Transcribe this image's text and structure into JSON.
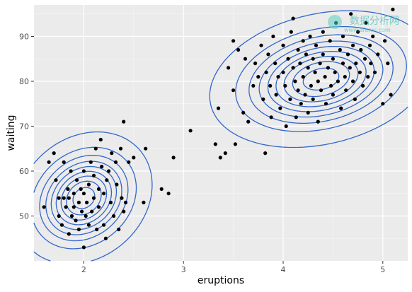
{
  "chart_data": {
    "type": "scatter",
    "xlabel": "eruptions",
    "ylabel": "waiting",
    "xlim": [
      1.5,
      5.25
    ],
    "ylim": [
      40,
      97
    ],
    "x_ticks": [
      2,
      3,
      4,
      5
    ],
    "y_ticks": [
      50,
      60,
      70,
      80,
      90
    ],
    "grid": true,
    "legend": "none",
    "background": "#ebebeb",
    "point_color": "#000000",
    "contour_color": "#3366cc",
    "density_contours": {
      "clusters": [
        {
          "center": [
            2.0,
            54.0
          ],
          "sd": [
            0.27,
            5.8
          ],
          "rho": 0.2
        },
        {
          "center": [
            4.38,
            80.5
          ],
          "sd": [
            0.44,
            6.0
          ],
          "rho": 0.25
        }
      ],
      "level_count": 9
    },
    "points": [
      [
        1.6,
        52
      ],
      [
        1.65,
        62
      ],
      [
        1.7,
        64
      ],
      [
        1.72,
        58
      ],
      [
        1.75,
        54
      ],
      [
        1.75,
        50
      ],
      [
        1.78,
        48
      ],
      [
        1.8,
        62
      ],
      [
        1.8,
        54
      ],
      [
        1.82,
        52
      ],
      [
        1.84,
        56
      ],
      [
        1.85,
        46
      ],
      [
        1.85,
        54
      ],
      [
        1.87,
        60
      ],
      [
        1.88,
        50
      ],
      [
        1.9,
        52
      ],
      [
        1.9,
        55
      ],
      [
        1.92,
        49
      ],
      [
        1.93,
        58
      ],
      [
        1.95,
        53
      ],
      [
        1.95,
        47
      ],
      [
        1.97,
        56
      ],
      [
        1.98,
        51
      ],
      [
        2.0,
        55
      ],
      [
        2.0,
        43
      ],
      [
        2.0,
        60
      ],
      [
        2.02,
        50
      ],
      [
        2.03,
        53
      ],
      [
        2.05,
        57
      ],
      [
        2.05,
        48
      ],
      [
        2.07,
        62
      ],
      [
        2.08,
        51
      ],
      [
        2.1,
        54
      ],
      [
        2.1,
        59
      ],
      [
        2.12,
        65
      ],
      [
        2.13,
        47
      ],
      [
        2.15,
        56
      ],
      [
        2.15,
        52
      ],
      [
        2.17,
        67
      ],
      [
        2.18,
        61
      ],
      [
        2.2,
        48
      ],
      [
        2.2,
        55
      ],
      [
        2.22,
        45
      ],
      [
        2.23,
        58
      ],
      [
        2.25,
        60
      ],
      [
        2.27,
        53
      ],
      [
        2.28,
        64
      ],
      [
        2.3,
        50
      ],
      [
        2.32,
        62
      ],
      [
        2.33,
        57
      ],
      [
        2.35,
        47
      ],
      [
        2.37,
        65
      ],
      [
        2.38,
        54
      ],
      [
        2.4,
        71
      ],
      [
        2.4,
        51
      ],
      [
        2.42,
        53
      ],
      [
        2.45,
        62
      ],
      [
        2.5,
        63
      ],
      [
        2.6,
        53
      ],
      [
        2.62,
        65
      ],
      [
        2.78,
        56
      ],
      [
        2.85,
        55
      ],
      [
        2.9,
        63
      ],
      [
        3.07,
        69
      ],
      [
        3.32,
        66
      ],
      [
        3.35,
        74
      ],
      [
        3.37,
        63
      ],
      [
        3.42,
        64
      ],
      [
        3.45,
        83
      ],
      [
        3.5,
        89
      ],
      [
        3.5,
        78
      ],
      [
        3.52,
        66
      ],
      [
        3.55,
        87
      ],
      [
        3.6,
        73
      ],
      [
        3.62,
        85
      ],
      [
        3.65,
        71
      ],
      [
        3.7,
        79
      ],
      [
        3.72,
        84
      ],
      [
        3.75,
        81
      ],
      [
        3.78,
        88
      ],
      [
        3.8,
        76
      ],
      [
        3.82,
        64
      ],
      [
        3.83,
        82
      ],
      [
        3.85,
        86
      ],
      [
        3.87,
        79
      ],
      [
        3.88,
        72
      ],
      [
        3.9,
        90
      ],
      [
        3.92,
        84
      ],
      [
        3.93,
        77
      ],
      [
        3.95,
        81
      ],
      [
        3.97,
        74
      ],
      [
        4.0,
        88
      ],
      [
        4.0,
        82
      ],
      [
        4.02,
        79
      ],
      [
        4.03,
        70
      ],
      [
        4.05,
        85
      ],
      [
        4.07,
        76
      ],
      [
        4.08,
        91
      ],
      [
        4.1,
        83
      ],
      [
        4.1,
        94
      ],
      [
        4.12,
        80
      ],
      [
        4.13,
        72
      ],
      [
        4.15,
        87
      ],
      [
        4.15,
        78
      ],
      [
        4.17,
        84
      ],
      [
        4.18,
        75
      ],
      [
        4.2,
        89
      ],
      [
        4.2,
        81
      ],
      [
        4.22,
        77
      ],
      [
        4.23,
        86
      ],
      [
        4.25,
        83
      ],
      [
        4.25,
        73
      ],
      [
        4.27,
        90
      ],
      [
        4.28,
        79
      ],
      [
        4.3,
        85
      ],
      [
        4.3,
        76
      ],
      [
        4.32,
        82
      ],
      [
        4.33,
        88
      ],
      [
        4.35,
        80
      ],
      [
        4.35,
        71
      ],
      [
        4.37,
        84
      ],
      [
        4.38,
        78
      ],
      [
        4.4,
        91
      ],
      [
        4.4,
        86
      ],
      [
        4.42,
        81
      ],
      [
        4.43,
        75
      ],
      [
        4.45,
        83
      ],
      [
        4.47,
        89
      ],
      [
        4.48,
        79
      ],
      [
        4.5,
        85
      ],
      [
        4.5,
        77
      ],
      [
        4.52,
        82
      ],
      [
        4.53,
        93
      ],
      [
        4.55,
        80
      ],
      [
        4.57,
        87
      ],
      [
        4.58,
        74
      ],
      [
        4.6,
        84
      ],
      [
        4.6,
        90
      ],
      [
        4.62,
        81
      ],
      [
        4.63,
        78
      ],
      [
        4.65,
        86
      ],
      [
        4.67,
        83
      ],
      [
        4.68,
        95
      ],
      [
        4.7,
        80
      ],
      [
        4.7,
        88
      ],
      [
        4.72,
        76
      ],
      [
        4.73,
        84
      ],
      [
        4.75,
        91
      ],
      [
        4.77,
        82
      ],
      [
        4.78,
        87
      ],
      [
        4.8,
        79
      ],
      [
        4.82,
        85
      ],
      [
        4.83,
        93
      ],
      [
        4.85,
        81
      ],
      [
        4.87,
        88
      ],
      [
        4.88,
        84
      ],
      [
        4.9,
        90
      ],
      [
        4.92,
        82
      ],
      [
        4.95,
        86
      ],
      [
        5.0,
        75
      ],
      [
        5.02,
        89
      ],
      [
        5.05,
        84
      ],
      [
        5.08,
        77
      ],
      [
        5.1,
        96
      ]
    ]
  },
  "watermark": {
    "brand": "数据分析网",
    "url": "www.afenxi.com"
  }
}
